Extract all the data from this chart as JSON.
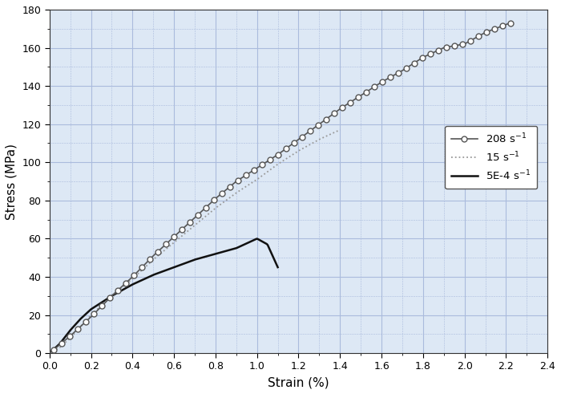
{
  "xlabel": "Strain (%)",
  "ylabel": "Stress (MPa)",
  "xlim": [
    0.0,
    2.4
  ],
  "ylim": [
    0,
    180
  ],
  "xticks": [
    0.0,
    0.2,
    0.4,
    0.6,
    0.8,
    1.0,
    1.2,
    1.4,
    1.6,
    1.8,
    2.0,
    2.2,
    2.4
  ],
  "yticks": [
    0,
    20,
    40,
    60,
    80,
    100,
    120,
    140,
    160,
    180
  ],
  "grid_color": "#aabbdd",
  "background_color": "#dde8f5",
  "curve208_x": [
    0,
    0.1,
    0.2,
    0.3,
    0.4,
    0.5,
    0.6,
    0.7,
    0.8,
    0.9,
    1.0,
    1.1,
    1.2,
    1.3,
    1.4,
    1.5,
    1.6,
    1.7,
    1.8,
    1.9,
    2.0,
    2.1,
    2.22
  ],
  "curve208_y": [
    0,
    9,
    19,
    30,
    40,
    51,
    61,
    71,
    81,
    90,
    97,
    104,
    112,
    120,
    128,
    135,
    142,
    148,
    155,
    160,
    162,
    168,
    173
  ],
  "curve15_x": [
    0,
    0.05,
    0.1,
    0.15,
    0.2,
    0.3,
    0.4,
    0.5,
    0.6,
    0.7,
    0.8,
    0.9,
    1.0,
    1.1,
    1.2,
    1.3,
    1.4
  ],
  "curve15_y": [
    0,
    3,
    8,
    14,
    20,
    30,
    39,
    49,
    58,
    67,
    76,
    84,
    91,
    99,
    106,
    112,
    117
  ],
  "curve54_x": [
    0,
    0.05,
    0.1,
    0.15,
    0.2,
    0.3,
    0.4,
    0.5,
    0.6,
    0.7,
    0.8,
    0.9,
    1.0,
    1.05,
    1.1
  ],
  "curve54_y": [
    0,
    5,
    12,
    18,
    23,
    30,
    36,
    41,
    45,
    49,
    52,
    55,
    60,
    57,
    45
  ],
  "color_208": "#555555",
  "color_15": "#999999",
  "color_54": "#111111",
  "leg_labels": [
    "208 s$^{-1}$",
    "15 s$^{-1}$",
    "5E-4 s$^{-1}$"
  ],
  "figsize": [
    7.0,
    4.91
  ],
  "dpi": 100
}
